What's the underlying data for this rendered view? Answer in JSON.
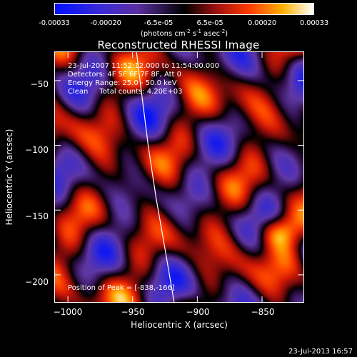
{
  "colorbar": {
    "ticks": [
      "-0.00033",
      "-0.00020",
      "-6.5e-05",
      "6.5e-05",
      "0.00020",
      "0.00033"
    ],
    "units_main": "(photons cm",
    "units_exp1": "-2",
    "units_mid1": " s",
    "units_exp2": "-1",
    "units_mid2": " asec",
    "units_exp3": "-2",
    "units_end": ")"
  },
  "title": "Reconstructed RHESSI Image",
  "annotations": {
    "time": "23-Jul-2007 11:52:12.000 to 11:54:00.000",
    "detectors": "Detectors: 4F 5F 6F 7F 8F, Att 0",
    "energy": "Energy Range: 25.0 - 50.0 keV",
    "clean": "Clean     Total counts: 4.20E+03",
    "peak": "Position of Peak = [-838,-166]"
  },
  "footer": {
    "timestamp": "23-Jul-2013 16:57"
  },
  "chart_data": {
    "type": "heatmap",
    "title": "Reconstructed RHESSI Image",
    "xlabel": "Heliocentric X (arcsec)",
    "ylabel": "Heliocentric Y (arcsec)",
    "xlim": [
      -1010,
      -818
    ],
    "ylim": [
      -221,
      -28
    ],
    "xticks": [
      -1000,
      -950,
      -900,
      -850
    ],
    "xtick_labels": [
      "−1000",
      "−950",
      "−900",
      "−850"
    ],
    "yticks": [
      -50,
      -100,
      -150,
      -200
    ],
    "ytick_labels": [
      "−50",
      "−100",
      "−150",
      "−200"
    ],
    "colormap": "rhessi-hot",
    "value_range": [
      -0.00033,
      0.00033
    ],
    "peak_position": [
      -838,
      -166
    ],
    "limb_curve": [
      [
        -947,
        -28
      ],
      [
        -943,
        -60
      ],
      [
        -938,
        -100
      ],
      [
        -932,
        -140
      ],
      [
        -925,
        -180
      ],
      [
        -918,
        -221
      ]
    ]
  }
}
